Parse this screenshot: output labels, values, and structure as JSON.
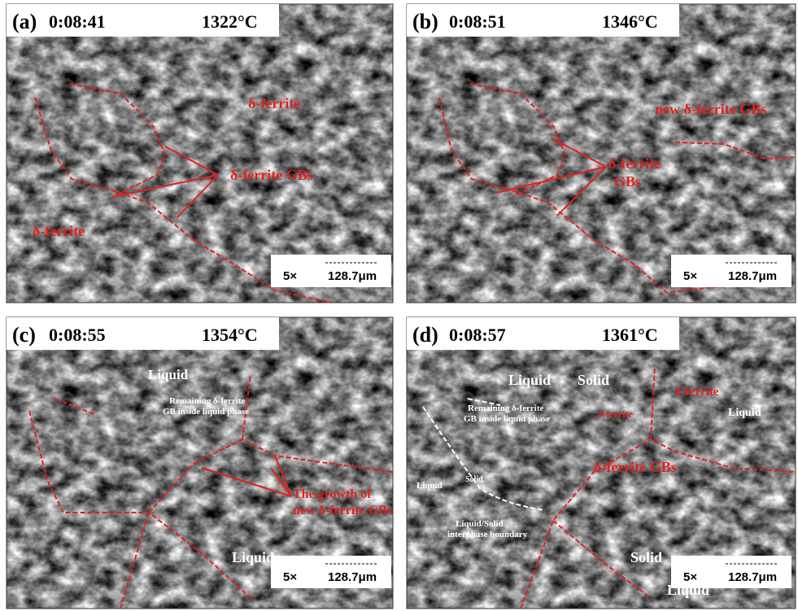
{
  "panels": [
    {
      "label": "(a)",
      "time": "0:08:41",
      "temperature": "1322°C",
      "scale": {
        "magnification": "5×",
        "length": "128.7μm"
      },
      "annotations": [
        {
          "text": "δ-ferrite",
          "color": "#e02020"
        },
        {
          "text": "δ-ferrite GBs",
          "color": "#e02020"
        },
        {
          "text": "δ-ferrite",
          "color": "#e02020"
        }
      ]
    },
    {
      "label": "(b)",
      "time": "0:08:51",
      "temperature": "1346°C",
      "scale": {
        "magnification": "5×",
        "length": "128.7μm"
      },
      "annotations": [
        {
          "text": "new δ-ferrite GBs",
          "color": "#e02020"
        },
        {
          "text": "δ-ferrite",
          "color": "#e02020"
        },
        {
          "text": "GBs",
          "color": "#e02020"
        }
      ]
    },
    {
      "label": "(c)",
      "time": "0:08:55",
      "temperature": "1354°C",
      "scale": {
        "magnification": "5×",
        "length": "128.7μm"
      },
      "annotations": [
        {
          "text": "Liquid",
          "color": "#ffffff"
        },
        {
          "text": "Remaining δ-ferrite",
          "color": "#ffffff"
        },
        {
          "text": "GB inside liquid phase",
          "color": "#ffffff"
        },
        {
          "text": "The growth of",
          "color": "#e02020"
        },
        {
          "text": "new δ-ferrite GBs",
          "color": "#e02020"
        },
        {
          "text": "Liquid",
          "color": "#ffffff"
        }
      ]
    },
    {
      "label": "(d)",
      "time": "0:08:57",
      "temperature": "1361°C",
      "scale": {
        "magnification": "5×",
        "length": "128.7μm"
      },
      "annotations": [
        {
          "text": "Liquid",
          "color": "#ffffff"
        },
        {
          "text": "Solid",
          "color": "#ffffff"
        },
        {
          "text": "δ-ferrite",
          "color": "#e02020"
        },
        {
          "text": "δ-ferrite",
          "color": "#e02020"
        },
        {
          "text": "Remaining δ-ferrite",
          "color": "#ffffff"
        },
        {
          "text": "GB inside liquid phase",
          "color": "#ffffff"
        },
        {
          "text": "Liquid",
          "color": "#ffffff"
        },
        {
          "text": "δ-ferrite GBs",
          "color": "#e02020"
        },
        {
          "text": "Solid",
          "color": "#ffffff"
        },
        {
          "text": "Liquid",
          "color": "#ffffff"
        },
        {
          "text": "Liquid/Solid",
          "color": "#ffffff"
        },
        {
          "text": "interphase boundary",
          "color": "#ffffff"
        },
        {
          "text": "Solid",
          "color": "#ffffff"
        },
        {
          "text": "Liquid",
          "color": "#ffffff"
        }
      ]
    }
  ]
}
